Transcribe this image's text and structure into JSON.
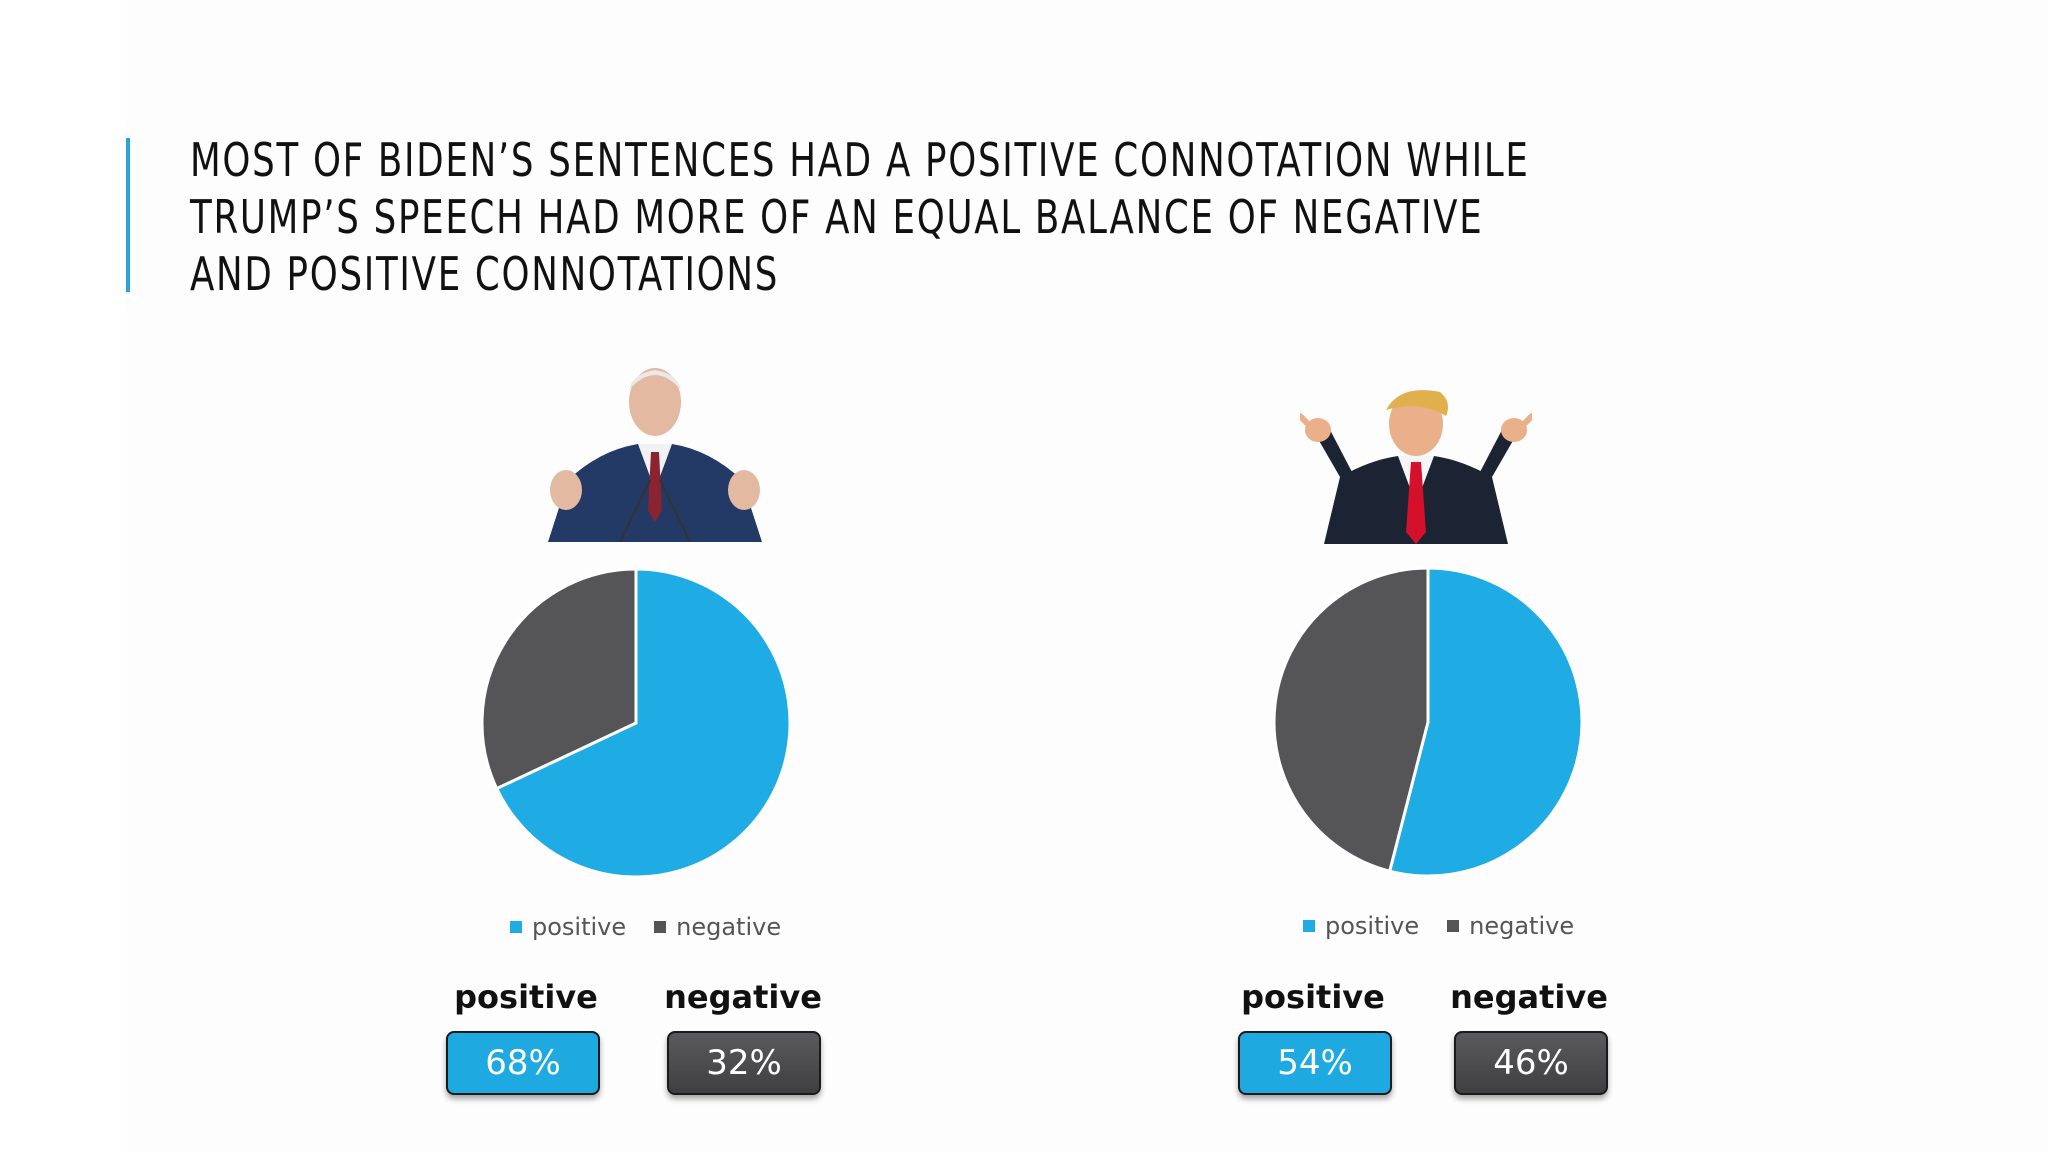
{
  "slide": {
    "title": "MOST OF BIDEN’S SENTENCES HAD A POSITIVE CONNOTATION WHILE TRUMP’S SPEECH HAD MORE OF AN EQUAL BALANCE OF NEGATIVE AND POSITIVE CONNOTATIONS",
    "accent_color": "#2aa3d8"
  },
  "colors": {
    "positive": "#1fabe3",
    "negative": "#555558"
  },
  "chart_data": [
    {
      "type": "pie",
      "categories": [
        "positive",
        "negative"
      ],
      "values": [
        68,
        32
      ],
      "legend": "bottom",
      "stats": [
        {
          "label": "positive",
          "value": "68%"
        },
        {
          "label": "negative",
          "value": "32%"
        }
      ]
    },
    {
      "type": "pie",
      "categories": [
        "positive",
        "negative"
      ],
      "values": [
        54,
        46
      ],
      "legend": "bottom",
      "stats": [
        {
          "label": "positive",
          "value": "54%"
        },
        {
          "label": "negative",
          "value": "46%"
        }
      ]
    }
  ]
}
